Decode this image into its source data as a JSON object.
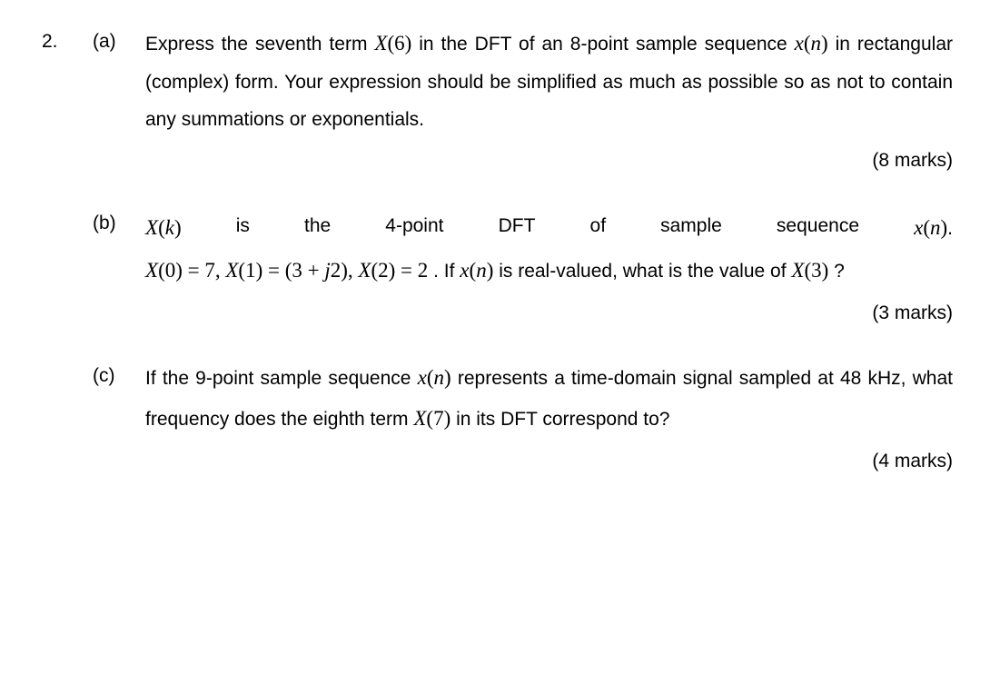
{
  "question_number": "2.",
  "parts": {
    "a": {
      "label": "(a)",
      "text_1": "Express the seventh term ",
      "math_1": [
        "X",
        "(6)"
      ],
      "text_2": " in the DFT of an 8-point sample sequence ",
      "math_2": [
        "x",
        "(",
        "n",
        ")"
      ],
      "text_3": " in rectangular (complex) form.  Your expression should be simplified as much as possible so as not to contain any summations or exponentials.",
      "marks": "(8 marks)"
    },
    "b": {
      "label": "(b)",
      "leading_math_1": [
        "X",
        "(",
        "k",
        ")"
      ],
      "text_1": " is the 4-point DFT of sample sequence ",
      "math_2": [
        "x",
        "(",
        "n",
        ")"
      ],
      "text_2": ". ",
      "eqs": "X(0) = 7, X(1) = (3 + j2), X(2) = 2",
      "text_3": ".  If ",
      "math_3": [
        "x",
        "(",
        "n",
        ")"
      ],
      "text_4": " is real-valued, what is the value of ",
      "math_4": [
        "X",
        "(3)"
      ],
      "text_5": " ?",
      "marks": "(3 marks)"
    },
    "c": {
      "label": "(c)",
      "text_1": "If the 9-point sample sequence ",
      "math_1": [
        "x",
        "(",
        "n",
        ")"
      ],
      "text_2": " represents a time-domain signal sampled at 48 kHz, what frequency does the eighth term ",
      "math_2": [
        "X",
        "(7)"
      ],
      "text_3": " in its DFT correspond to?",
      "marks": "(4 marks)"
    }
  }
}
